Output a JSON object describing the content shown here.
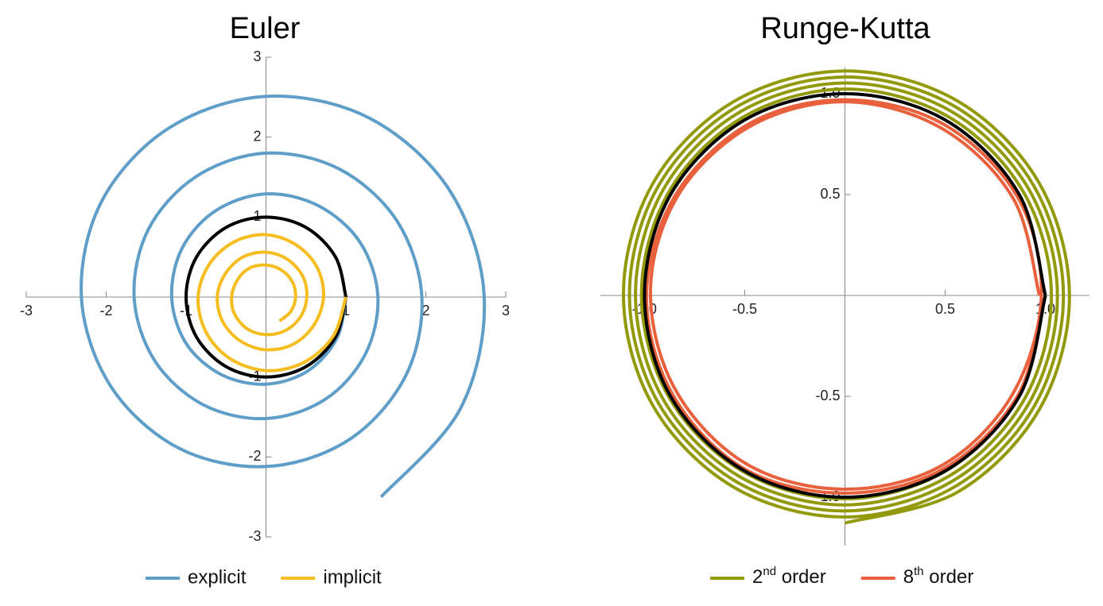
{
  "chart_data": [
    {
      "type": "line",
      "title": "Euler",
      "xlim": [
        -3,
        3
      ],
      "ylim": [
        -3,
        3
      ],
      "xticks": [
        -3,
        -2,
        -1,
        1,
        2,
        3
      ],
      "yticks": [
        -3,
        -2,
        -1,
        1,
        2,
        3
      ],
      "series": [
        {
          "name": "explicit",
          "color": "#5e9ec8",
          "x": [
            1,
            0.89,
            0.53,
            0,
            -0.56,
            -1.0,
            -1.18,
            -1.05,
            -0.63,
            0,
            0.66,
            1.18,
            1.4,
            1.24,
            0.74,
            0,
            -0.78,
            -1.39,
            -1.65,
            -1.47,
            -0.87,
            0,
            0.92,
            1.64,
            1.95,
            1.74,
            1.03,
            0,
            -1.09,
            -1.94,
            -2.31,
            -2.06,
            -1.22,
            0,
            1.29,
            2.3,
            2.73,
            2.43,
            1.44
          ],
          "values": [
            0,
            -0.51,
            -0.92,
            -1.09,
            -0.97,
            -0.58,
            0,
            0.61,
            1.08,
            1.29,
            1.14,
            0.68,
            0,
            -0.72,
            -1.28,
            -1.52,
            -1.35,
            -0.8,
            0,
            0.85,
            1.51,
            1.8,
            1.6,
            0.95,
            0,
            -1.0,
            -1.79,
            -2.12,
            -1.89,
            -1.12,
            0,
            1.19,
            2.11,
            2.51,
            2.24,
            1.33,
            0,
            -1.4,
            -2.5
          ]
        },
        {
          "color": "#000000",
          "x": [
            1,
            0.87,
            0.5,
            0,
            -0.5,
            -0.87,
            -1,
            -0.87,
            -0.5,
            0,
            0.5,
            0.87,
            1
          ],
          "values": [
            0,
            -0.5,
            -0.87,
            -1,
            -0.87,
            -0.5,
            0,
            0.5,
            0.87,
            1,
            0.87,
            0.5,
            0
          ]
        },
        {
          "name": "implicit",
          "color": "#f5bd1f",
          "x": [
            1,
            0.84,
            0.47,
            0,
            -0.45,
            -0.75,
            -0.85,
            -0.71,
            -0.4,
            0,
            0.38,
            0.64,
            0.72,
            0.6,
            0.34,
            0,
            -0.32,
            -0.54,
            -0.61,
            -0.51,
            -0.29,
            0,
            0.27,
            0.46,
            0.51,
            0.43,
            0.24,
            0,
            -0.23,
            -0.39,
            -0.43,
            -0.36,
            -0.21,
            0,
            0.19,
            0.33,
            0.37,
            0.31,
            0.17
          ],
          "values": [
            0,
            -0.49,
            -0.82,
            -0.92,
            -0.77,
            -0.44,
            0,
            0.41,
            0.69,
            0.78,
            0.65,
            0.37,
            0,
            -0.35,
            -0.59,
            -0.66,
            -0.55,
            -0.31,
            0,
            0.29,
            0.5,
            0.56,
            0.47,
            0.26,
            0,
            -0.25,
            -0.42,
            -0.47,
            -0.4,
            -0.22,
            0,
            0.21,
            0.36,
            0.4,
            0.34,
            0.19,
            0,
            -0.18,
            -0.3
          ]
        }
      ]
    },
    {
      "type": "line",
      "title": "Runge-Kutta",
      "xlim": [
        -1.22,
        1.22
      ],
      "ylim": [
        -1.24,
        1.13
      ],
      "xticks": [
        {
          "value": -1,
          "label": "-1.0"
        },
        -0.5,
        0.5,
        {
          "value": 1,
          "label": "1.0"
        }
      ],
      "yticks": [
        {
          "value": -1,
          "label": "-1.0"
        },
        -0.5,
        0.5,
        {
          "value": 1,
          "label": "1.0"
        }
      ],
      "series": [
        {
          "name": "2nd order",
          "color": "#939a0a",
          "x": [
            1,
            0.868,
            0.503,
            0,
            -0.505,
            -0.877,
            -1.015,
            -0.881,
            -0.51,
            0,
            0.513,
            0.89,
            1.03,
            0.894,
            0.518,
            0,
            -0.52,
            -0.903,
            -1.045,
            -0.907,
            -0.525,
            0,
            0.528,
            0.916,
            1.06,
            0.92,
            0.533,
            0,
            -0.535,
            -0.929,
            -1.075,
            -0.933,
            -0.54,
            0,
            0.543,
            0.942,
            1.09,
            0.946,
            0.548,
            0,
            -0.55,
            -0.955,
            -1.105,
            -0.959,
            -0.555,
            0,
            0.558,
            0.968,
            1.12,
            0.972,
            0.563,
            0
          ],
          "values": [
            0,
            -0.501,
            -0.87,
            -1.008,
            -0.875,
            -0.506,
            0,
            0.509,
            0.883,
            1.023,
            0.888,
            0.514,
            0,
            -0.516,
            -0.896,
            -1.038,
            -0.901,
            -0.521,
            0,
            0.524,
            0.909,
            1.053,
            0.914,
            0.529,
            0,
            -0.531,
            -0.922,
            -1.068,
            -0.927,
            -0.536,
            0,
            0.539,
            0.935,
            1.083,
            0.94,
            0.544,
            0,
            -0.546,
            -0.948,
            -1.098,
            -0.953,
            -0.551,
            0,
            0.554,
            0.961,
            1.113,
            0.966,
            0.559,
            0,
            -0.561,
            -0.974,
            -1.128
          ]
        },
        {
          "name": "8th order",
          "color": "#e8603c",
          "x": [
            1,
            0.86,
            0.49,
            0,
            -0.5,
            -0.86,
            -0.99,
            -0.85,
            -0.48,
            0,
            0.49,
            0.86,
            0.98,
            0.83,
            0.47,
            -0.02,
            -0.5,
            -0.85,
            -0.97,
            -0.83,
            -0.47,
            0,
            0.48,
            0.84,
            0.97
          ],
          "values": [
            0,
            -0.5,
            -0.86,
            -0.98,
            -0.86,
            -0.49,
            0,
            0.49,
            0.85,
            0.97,
            0.85,
            0.49,
            0,
            -0.5,
            -0.85,
            -0.96,
            -0.83,
            -0.46,
            0.03,
            0.5,
            0.84,
            0.96,
            0.83,
            0.48,
            0
          ]
        },
        {
          "color": "#000000",
          "x": [
            1,
            0.87,
            0.5,
            0,
            -0.5,
            -0.87,
            -1,
            -0.87,
            -0.5,
            0,
            0.5,
            0.87,
            1
          ],
          "values": [
            0,
            -0.5,
            -0.87,
            -1,
            -0.87,
            -0.5,
            0,
            0.5,
            0.87,
            1,
            0.87,
            0.5,
            0
          ]
        }
      ]
    }
  ]
}
